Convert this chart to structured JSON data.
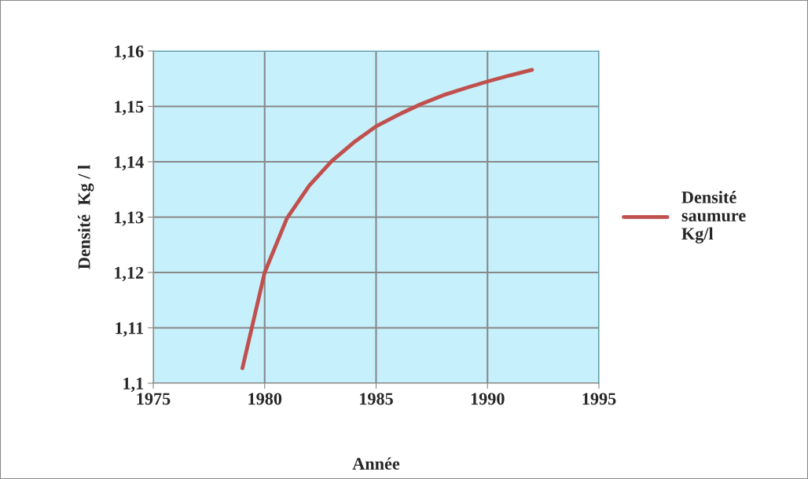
{
  "chart_data": {
    "type": "line",
    "xlabel": "Année",
    "ylabel": "Densité  Kg / l",
    "x": [
      1979,
      1980,
      1981,
      1982,
      1983,
      1984,
      1985,
      1986,
      1987,
      1988,
      1989,
      1990,
      1991,
      1992
    ],
    "series": [
      {
        "name": "Densité saumure Kg/l",
        "color": "#c0504d",
        "values": [
          1.1027,
          1.12,
          1.1298,
          1.1357,
          1.1401,
          1.1435,
          1.1464,
          1.1485,
          1.1504,
          1.152,
          1.1533,
          1.1545,
          1.1556,
          1.1566
        ]
      }
    ],
    "xlim": [
      1975,
      1995
    ],
    "xticks": [
      1975,
      1980,
      1985,
      1990,
      1995
    ],
    "ylim": [
      1.1,
      1.16
    ],
    "yticks": [
      {
        "value": 1.1,
        "label": "1,1"
      },
      {
        "value": 1.11,
        "label": "1,11"
      },
      {
        "value": 1.12,
        "label": "1,12"
      },
      {
        "value": 1.13,
        "label": "1,13"
      },
      {
        "value": 1.14,
        "label": "1,14"
      },
      {
        "value": 1.15,
        "label": "1,15"
      },
      {
        "value": 1.16,
        "label": "1,16"
      }
    ],
    "grid": true,
    "legend": "right",
    "marker": "none",
    "line_style": "solid"
  }
}
